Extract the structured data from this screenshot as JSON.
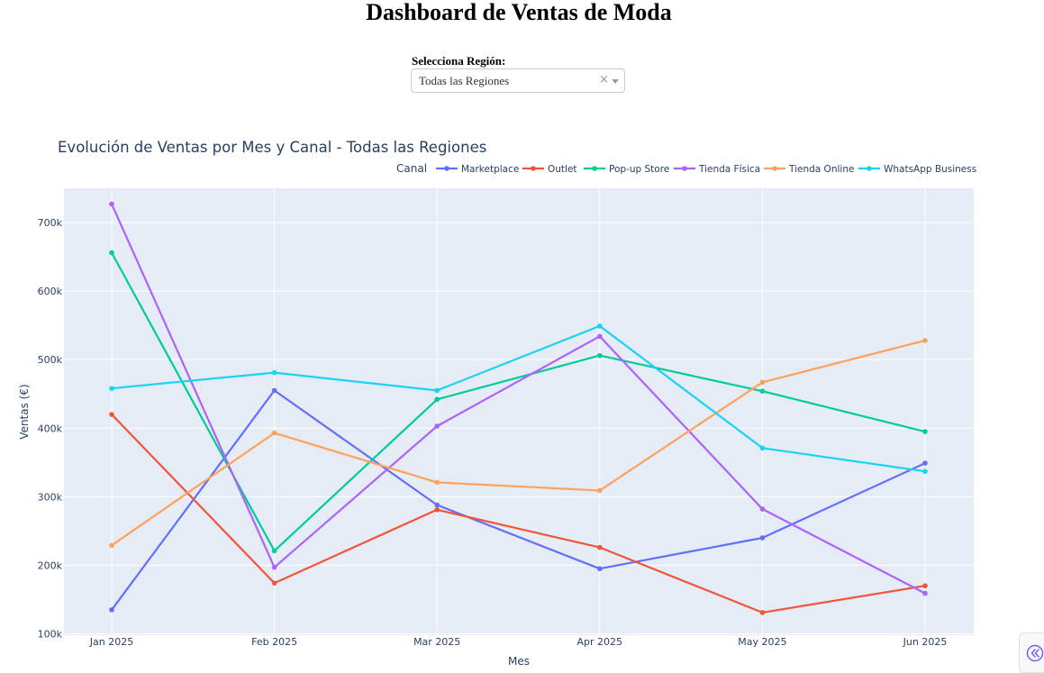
{
  "header": {
    "title": "Dashboard de Ventas de Moda"
  },
  "filter": {
    "label": "Selecciona Región:",
    "selected": "Todas las Regiones",
    "clear_glyph": "×"
  },
  "corner_button": {
    "icon": "double-chevron-left-icon",
    "color": "#6c63ff"
  },
  "chart_data": {
    "type": "line",
    "title": "Evolución de Ventas por Mes y Canal - Todas las Regiones",
    "xlabel": "Mes",
    "ylabel": "Ventas (€)",
    "legend_title": "Canal",
    "legend_position": "top-right, horizontal",
    "grid": true,
    "plot_background": "#e5ecf6",
    "categories": [
      "Jan 2025",
      "Feb 2025",
      "Mar 2025",
      "Apr 2025",
      "May 2025",
      "Jun 2025"
    ],
    "y_ticks": [
      100000,
      200000,
      300000,
      400000,
      500000,
      600000,
      700000
    ],
    "y_tick_labels": [
      "100k",
      "200k",
      "300k",
      "400k",
      "500k",
      "600k",
      "700k"
    ],
    "ylim": [
      98000,
      750000
    ],
    "series": [
      {
        "name": "Marketplace",
        "color": "#636efa",
        "values": [
          135000,
          455000,
          288000,
          195000,
          240000,
          349000
        ]
      },
      {
        "name": "Outlet",
        "color": "#ef553b",
        "values": [
          420000,
          174000,
          281000,
          226000,
          131000,
          170000
        ]
      },
      {
        "name": "Pop-up Store",
        "color": "#00cc96",
        "values": [
          656000,
          221000,
          442000,
          506000,
          454000,
          395000
        ]
      },
      {
        "name": "Tienda Física",
        "color": "#ab63fa",
        "values": [
          727000,
          197000,
          403000,
          534000,
          282000,
          159000
        ]
      },
      {
        "name": "Tienda Online",
        "color": "#ffa15a",
        "values": [
          229000,
          393000,
          321000,
          309000,
          467000,
          528000
        ]
      },
      {
        "name": "WhatsApp Business",
        "color": "#19d3f3",
        "values": [
          458000,
          481000,
          455000,
          549000,
          371000,
          337000
        ]
      }
    ]
  }
}
